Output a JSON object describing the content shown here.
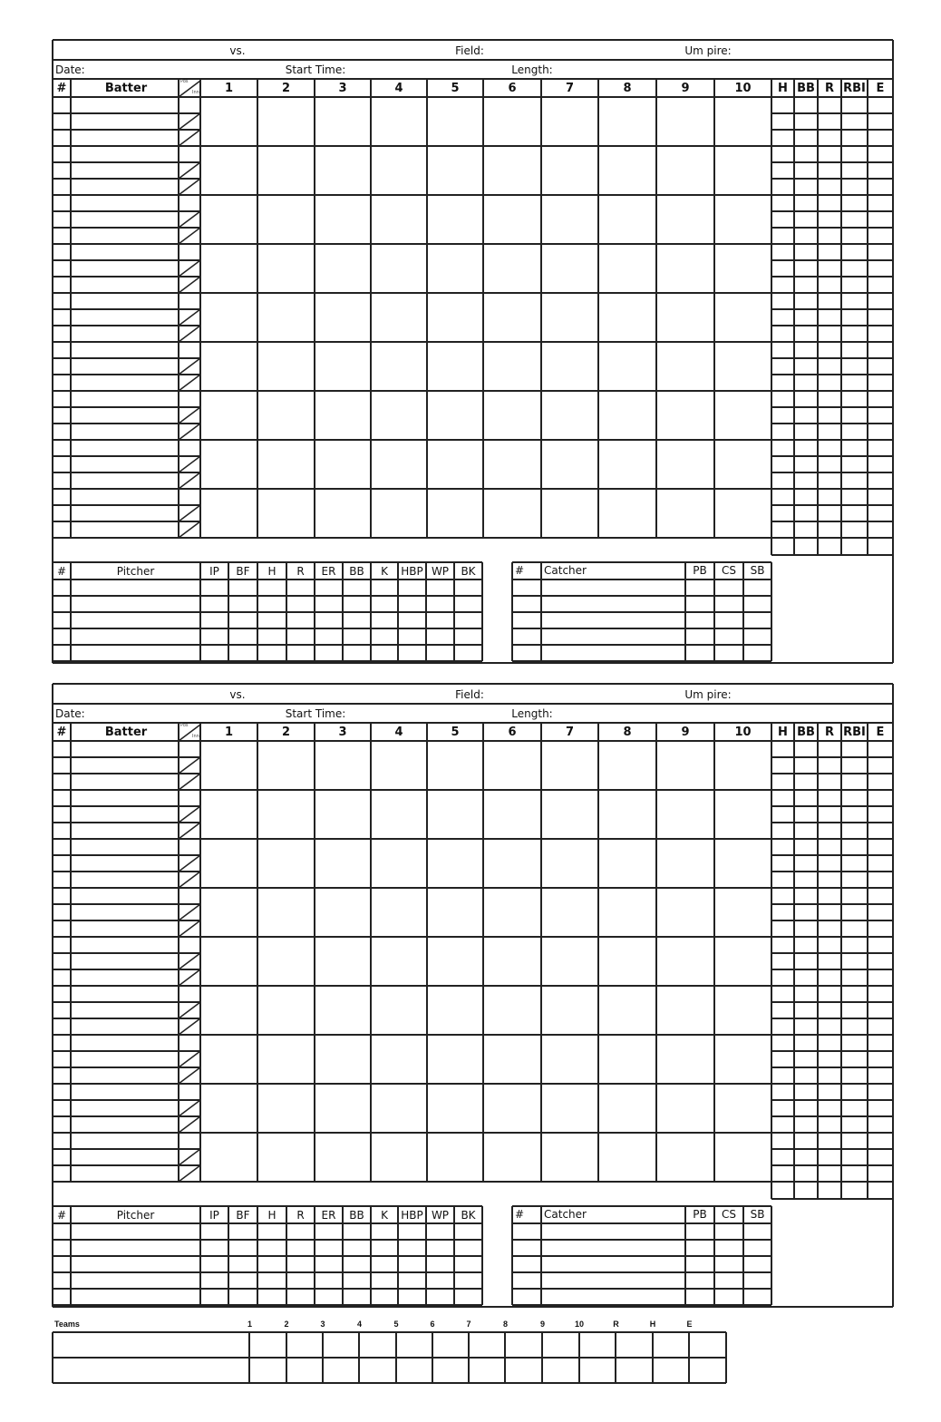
{
  "scorecard": {
    "header": {
      "vs": "vs.",
      "field": "Field:",
      "umpire": "Um pire:",
      "date": "Date:",
      "start_time": "Start Time:",
      "length": "Length:"
    },
    "batting_columns": {
      "number": "#",
      "batter": "Batter",
      "pos": "Pos",
      "inn": "Inn",
      "innings": [
        "1",
        "2",
        "3",
        "4",
        "5",
        "6",
        "7",
        "8",
        "9",
        "10"
      ],
      "stats": [
        "H",
        "BB",
        "R",
        "RBI",
        "E"
      ]
    },
    "batter_slots": 9,
    "sub_rows_per_slot": 3,
    "pitcher_columns": [
      "#",
      "Pitcher",
      "IP",
      "BF",
      "H",
      "R",
      "ER",
      "BB",
      "K",
      "HBP",
      "WP",
      "BK"
    ],
    "catcher_columns": [
      "#",
      "Catcher",
      "PB",
      "CS",
      "SB"
    ],
    "pitcher_rows": 5,
    "catcher_rows": 5
  },
  "cards": 2,
  "linescore": {
    "teams_label": "Teams",
    "columns": [
      "1",
      "2",
      "3",
      "4",
      "5",
      "6",
      "7",
      "8",
      "9",
      "10",
      "R",
      "H",
      "E"
    ],
    "rows": 2
  }
}
